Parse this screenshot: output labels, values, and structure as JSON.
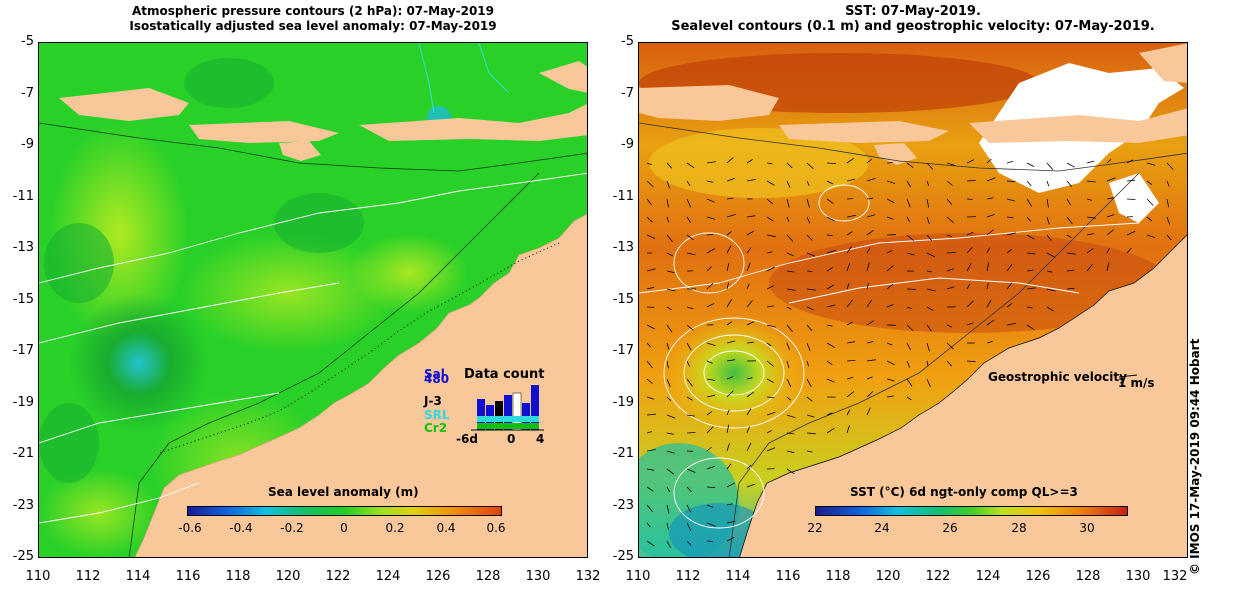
{
  "left": {
    "title_line1": "Atmospheric pressure contours (2 hPa): 07-May-2019",
    "title_line2": "Isostatically adjusted sea level anomaly: 07-May-2019",
    "colorbar_title": "Sea level anomaly (m)",
    "colorbar_labels": [
      "-0.6",
      "-0.4",
      "-0.2",
      "0",
      "0.2",
      "0.4",
      "0.6"
    ],
    "data_count": {
      "title": "Data count",
      "missions": [
        "Sal",
        "J-3",
        "SRL",
        "Cr2"
      ],
      "mission_extra": "480",
      "mission_colors": [
        "#1010d0",
        "#000000",
        "#30d8e0",
        "#10c010"
      ],
      "axis_labels": [
        "-6d",
        "0",
        "4"
      ]
    }
  },
  "right": {
    "title_line1": "SST: 07-May-2019.",
    "title_line2": "Sealevel contours (0.1 m) and geostrophic velocity: 07-May-2019.",
    "colorbar_title": "SST (°C) 6d ngt-only comp QL>=3",
    "colorbar_labels": [
      "22",
      "24",
      "26",
      "28",
      "30"
    ],
    "velocity_label": "Geostrophic velocity",
    "velocity_scale": "1 m/s"
  },
  "axes": {
    "y_labels": [
      "-5",
      "-7",
      "-9",
      "-11",
      "-13",
      "-15",
      "-17",
      "-19",
      "-21",
      "-23",
      "-25"
    ],
    "x_labels": [
      "110",
      "112",
      "114",
      "116",
      "118",
      "120",
      "122",
      "124",
      "126",
      "128",
      "130",
      "132"
    ]
  },
  "credit": "© IMOS 17-May-2019 09:44 Hobart",
  "colors": {
    "land": "#f9c89a",
    "sla_green": "#22d022",
    "sst_orange": "#e88a10"
  }
}
